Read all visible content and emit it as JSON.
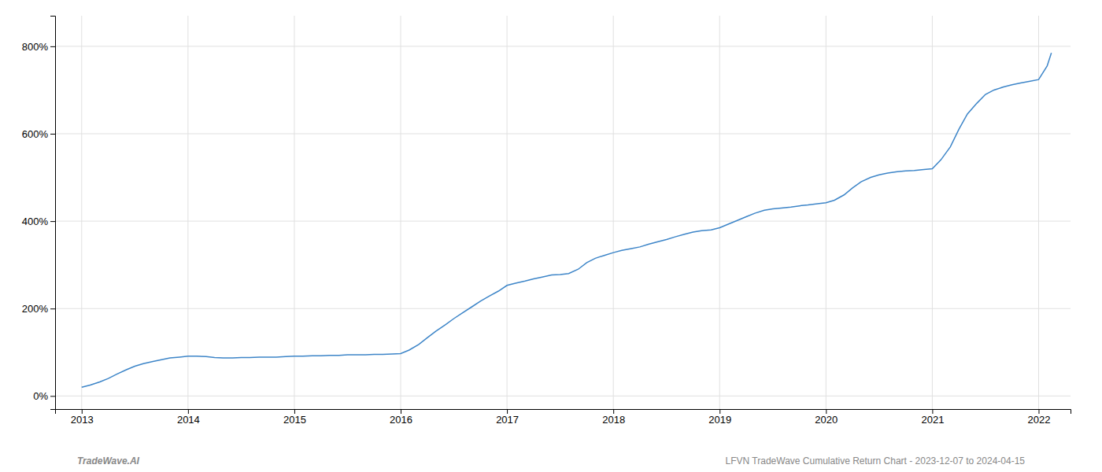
{
  "chart_data": {
    "type": "line",
    "x": [
      2013.0,
      2013.08,
      2013.17,
      2013.25,
      2013.33,
      2013.42,
      2013.5,
      2013.58,
      2013.67,
      2013.75,
      2013.83,
      2013.92,
      2014.0,
      2014.08,
      2014.17,
      2014.25,
      2014.33,
      2014.42,
      2014.5,
      2014.58,
      2014.67,
      2014.75,
      2014.83,
      2014.92,
      2015.0,
      2015.08,
      2015.17,
      2015.25,
      2015.33,
      2015.42,
      2015.5,
      2015.58,
      2015.67,
      2015.75,
      2015.83,
      2015.92,
      2016.0,
      2016.08,
      2016.17,
      2016.25,
      2016.33,
      2016.42,
      2016.5,
      2016.58,
      2016.67,
      2016.75,
      2016.83,
      2016.92,
      2017.0,
      2017.08,
      2017.17,
      2017.25,
      2017.33,
      2017.42,
      2017.5,
      2017.58,
      2017.67,
      2017.75,
      2017.83,
      2017.92,
      2018.0,
      2018.08,
      2018.17,
      2018.25,
      2018.33,
      2018.42,
      2018.5,
      2018.58,
      2018.67,
      2018.75,
      2018.83,
      2018.92,
      2019.0,
      2019.08,
      2019.17,
      2019.25,
      2019.33,
      2019.42,
      2019.5,
      2019.58,
      2019.67,
      2019.75,
      2019.83,
      2019.92,
      2020.0,
      2020.08,
      2020.17,
      2020.25,
      2020.33,
      2020.42,
      2020.5,
      2020.58,
      2020.67,
      2020.75,
      2020.83,
      2020.92,
      2021.0,
      2021.08,
      2021.17,
      2021.25,
      2021.33,
      2021.42,
      2021.5,
      2021.58,
      2021.67,
      2021.75,
      2021.83,
      2021.92,
      2022.0,
      2022.08,
      2022.12
    ],
    "values": [
      20,
      25,
      32,
      40,
      50,
      60,
      68,
      74,
      79,
      83,
      87,
      89,
      91,
      91,
      90,
      88,
      87,
      87,
      88,
      88,
      89,
      89,
      89,
      90,
      91,
      91,
      92,
      92,
      93,
      93,
      94,
      94,
      94,
      95,
      95,
      96,
      97,
      105,
      118,
      133,
      148,
      163,
      177,
      190,
      204,
      217,
      228,
      240,
      253,
      258,
      263,
      268,
      272,
      277,
      278,
      280,
      290,
      305,
      315,
      322,
      328,
      333,
      337,
      341,
      347,
      353,
      358,
      364,
      370,
      375,
      378,
      380,
      385,
      393,
      402,
      410,
      418,
      425,
      428,
      430,
      432,
      435,
      437,
      440,
      442,
      448,
      460,
      476,
      490,
      500,
      506,
      510,
      513,
      515,
      516,
      518,
      520,
      540,
      570,
      610,
      645,
      670,
      690,
      700,
      707,
      712,
      716,
      720,
      724,
      755,
      785
    ],
    "color": "#3d85c8",
    "xlim": [
      2012.75,
      2022.3
    ],
    "ylim": [
      -30,
      870
    ],
    "xticks": [
      2013,
      2014,
      2015,
      2016,
      2017,
      2018,
      2019,
      2020,
      2021,
      2022
    ],
    "yticks": [
      {
        "value": 0,
        "label": "0%"
      },
      {
        "value": 200,
        "label": "200%"
      },
      {
        "value": 400,
        "label": "400%"
      },
      {
        "value": 600,
        "label": "600%"
      },
      {
        "value": 800,
        "label": "800%"
      }
    ],
    "grid": true,
    "annotations": [
      "TradeWave.AI",
      "LFVN TradeWave Cumulative Return Chart - 2023-12-07 to 2024-04-15"
    ]
  }
}
